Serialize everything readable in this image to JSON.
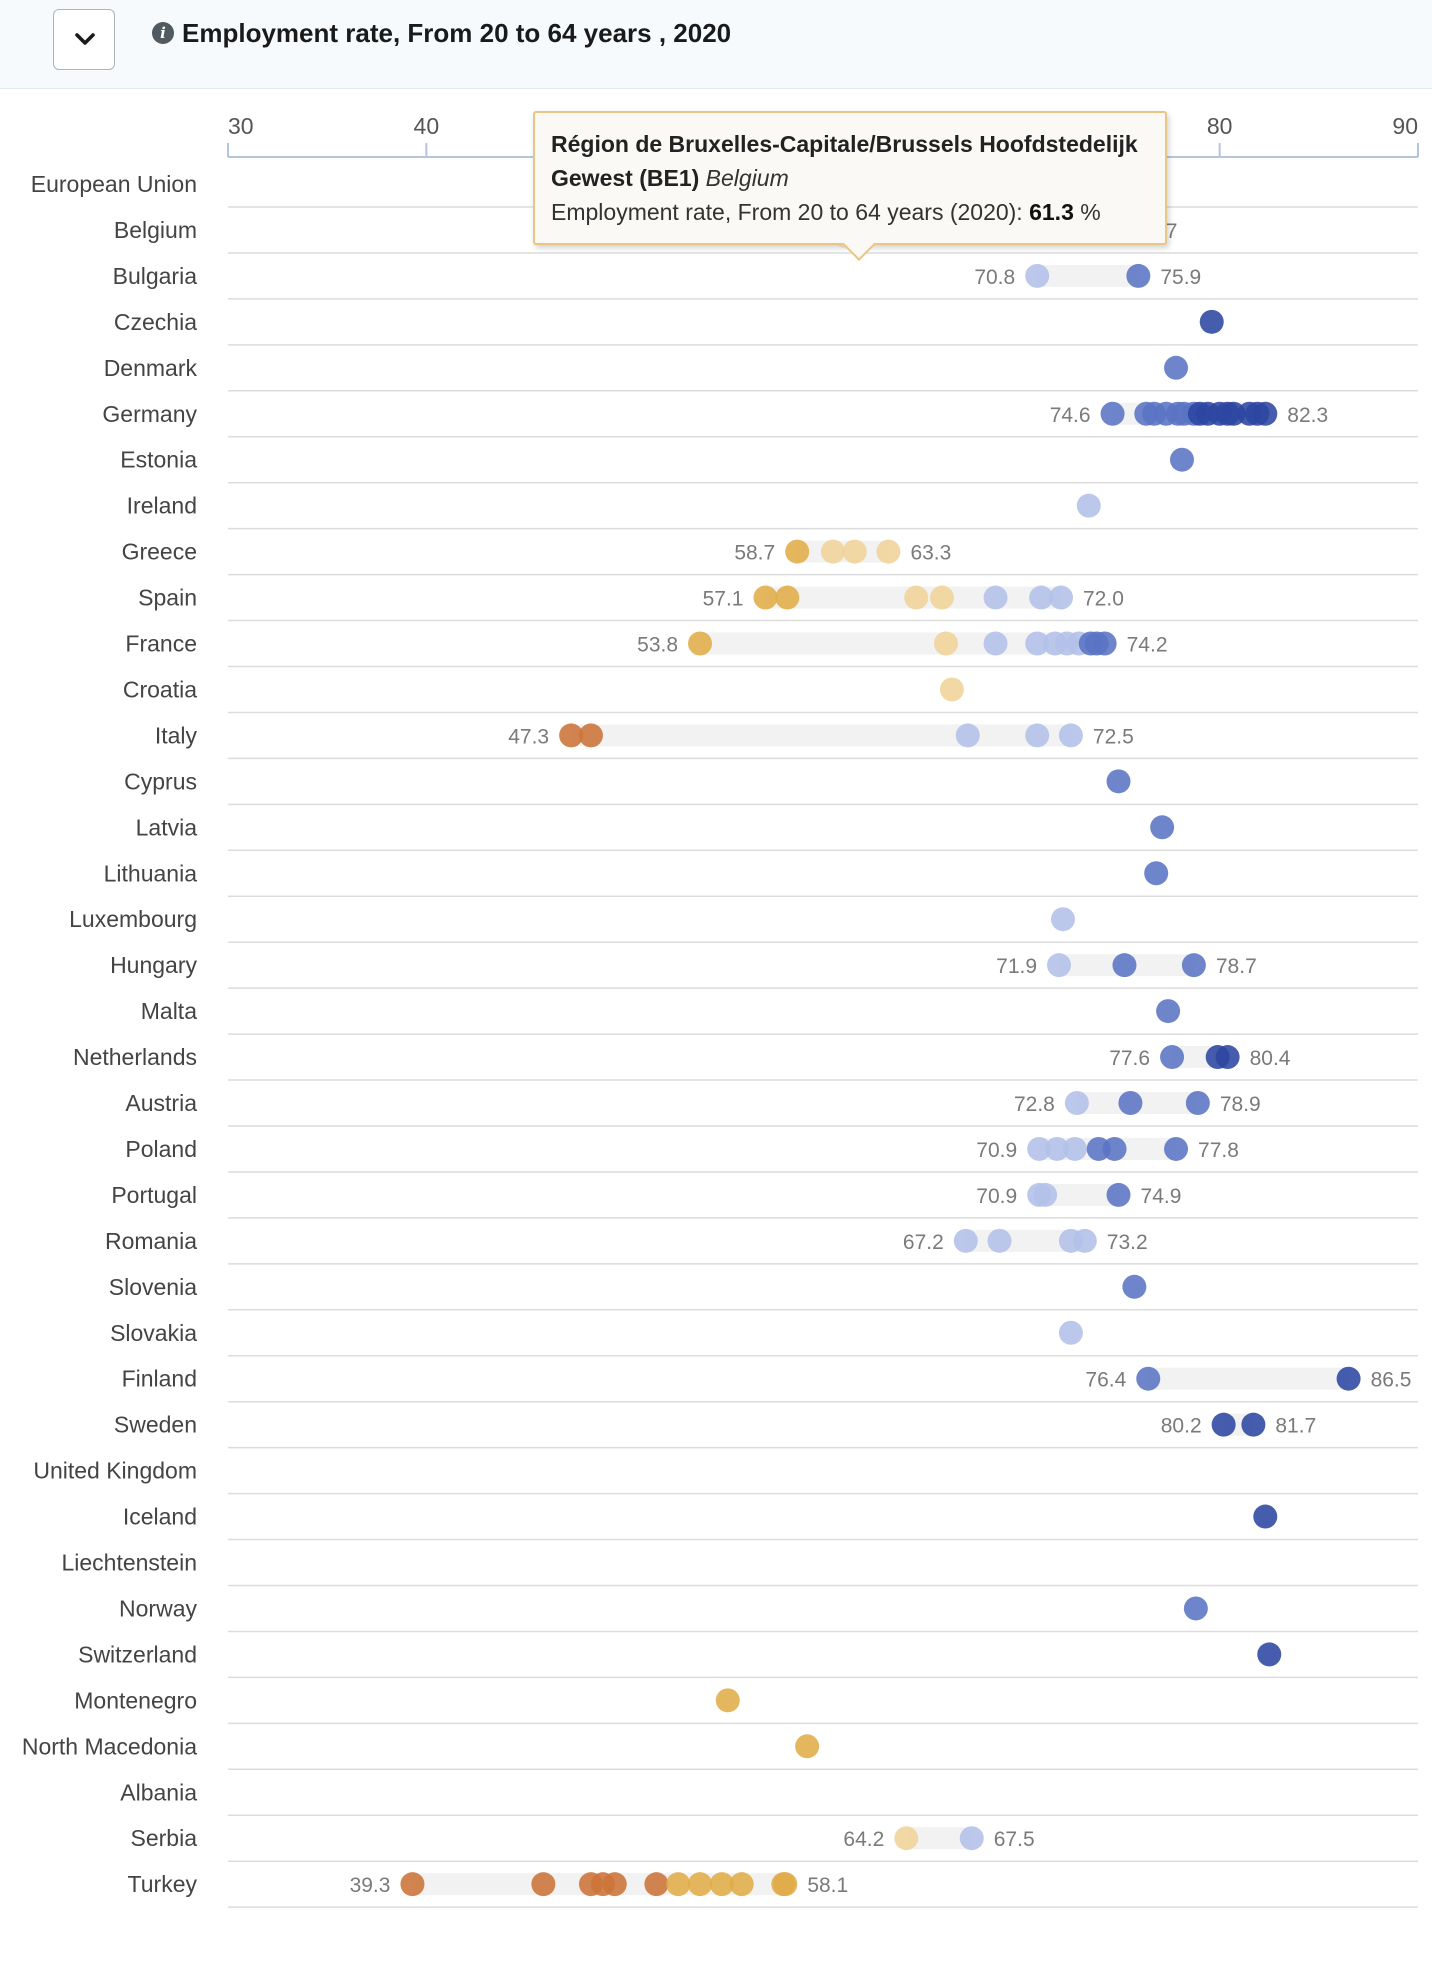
{
  "header": {
    "title": "Employment rate, From 20 to 64 years , 2020",
    "toggle_icon": "chevron-down-icon",
    "info_icon": "info-icon"
  },
  "tooltip": {
    "region": "Région de Bruxelles-Capitale/Brussels Hoofdstedelijk Gewest (BE1)",
    "country": "Belgium",
    "label": "Employment rate, From 20 to 64 years (2020):",
    "value": "61.3",
    "unit": "%"
  },
  "colors": {
    "high_dark": "#2c45a0",
    "high_mid": "#5a74c4",
    "high_light": "#b3c0e8",
    "low_light": "#efd399",
    "low_mid": "#e0ac48",
    "low_dark": "#cc7338",
    "range_bar": "#f2f2f2",
    "grid": "#dcdcdc",
    "axis": "#b6c5dc"
  },
  "chart_data": {
    "type": "scatter",
    "title": "Employment rate, From 20 to 64 years , 2020",
    "xlim": [
      30,
      90
    ],
    "x_ticks": [
      30,
      40,
      50,
      60,
      70,
      80,
      90
    ],
    "grid": true,
    "rows": [
      {
        "country": "European Union",
        "min_label": "",
        "max_label": "",
        "values": []
      },
      {
        "country": "Belgium",
        "min_label": "61.3",
        "max_label": "74.7",
        "values": [
          61.3,
          64.6,
          74.7
        ],
        "highlight": 61.3
      },
      {
        "country": "Bulgaria",
        "min_label": "70.8",
        "max_label": "75.9",
        "values": [
          70.8,
          75.9
        ]
      },
      {
        "country": "Czechia",
        "min_label": "",
        "max_label": "",
        "values": [
          79.6
        ]
      },
      {
        "country": "Denmark",
        "min_label": "",
        "max_label": "",
        "values": [
          77.8
        ]
      },
      {
        "country": "Germany",
        "min_label": "74.6",
        "max_label": "82.3",
        "values": [
          74.6,
          76.3,
          76.7,
          77.3,
          77.9,
          78.2,
          78.7,
          79.0,
          79.4,
          80.0,
          80.4,
          80.7,
          81.5,
          81.9,
          82.3
        ]
      },
      {
        "country": "Estonia",
        "min_label": "",
        "max_label": "",
        "values": [
          78.1
        ]
      },
      {
        "country": "Ireland",
        "min_label": "",
        "max_label": "",
        "values": [
          73.4
        ]
      },
      {
        "country": "Greece",
        "min_label": "58.7",
        "max_label": "63.3",
        "values": [
          58.7,
          60.5,
          61.6,
          63.3
        ]
      },
      {
        "country": "Spain",
        "min_label": "57.1",
        "max_label": "72.0",
        "values": [
          57.1,
          58.2,
          64.7,
          66.0,
          68.7,
          71.0,
          72.0
        ]
      },
      {
        "country": "France",
        "min_label": "53.8",
        "max_label": "74.2",
        "values": [
          53.8,
          66.2,
          68.7,
          70.8,
          71.7,
          72.3,
          72.9,
          73.5,
          73.8,
          74.2
        ]
      },
      {
        "country": "Croatia",
        "min_label": "",
        "max_label": "",
        "values": [
          66.5
        ]
      },
      {
        "country": "Italy",
        "min_label": "47.3",
        "max_label": "72.5",
        "values": [
          47.3,
          48.3,
          67.3,
          70.8,
          72.5
        ]
      },
      {
        "country": "Cyprus",
        "min_label": "",
        "max_label": "",
        "values": [
          74.9
        ]
      },
      {
        "country": "Latvia",
        "min_label": "",
        "max_label": "",
        "values": [
          77.1
        ]
      },
      {
        "country": "Lithuania",
        "min_label": "",
        "max_label": "",
        "values": [
          76.8
        ]
      },
      {
        "country": "Luxembourg",
        "min_label": "",
        "max_label": "",
        "values": [
          72.1
        ]
      },
      {
        "country": "Hungary",
        "min_label": "71.9",
        "max_label": "78.7",
        "values": [
          71.9,
          75.2,
          78.7
        ]
      },
      {
        "country": "Malta",
        "min_label": "",
        "max_label": "",
        "values": [
          77.4
        ]
      },
      {
        "country": "Netherlands",
        "min_label": "77.6",
        "max_label": "80.4",
        "values": [
          77.6,
          79.9,
          80.4
        ]
      },
      {
        "country": "Austria",
        "min_label": "72.8",
        "max_label": "78.9",
        "values": [
          72.8,
          75.5,
          78.9
        ]
      },
      {
        "country": "Poland",
        "min_label": "70.9",
        "max_label": "77.8",
        "values": [
          70.9,
          71.8,
          72.7,
          73.9,
          74.7,
          77.8
        ]
      },
      {
        "country": "Portugal",
        "min_label": "70.9",
        "max_label": "74.9",
        "values": [
          70.9,
          71.2,
          74.9
        ]
      },
      {
        "country": "Romania",
        "min_label": "67.2",
        "max_label": "73.2",
        "values": [
          67.2,
          68.9,
          72.5,
          73.2
        ]
      },
      {
        "country": "Slovenia",
        "min_label": "",
        "max_label": "",
        "values": [
          75.7
        ]
      },
      {
        "country": "Slovakia",
        "min_label": "",
        "max_label": "",
        "values": [
          72.5
        ]
      },
      {
        "country": "Finland",
        "min_label": "76.4",
        "max_label": "86.5",
        "values": [
          76.4,
          86.5
        ]
      },
      {
        "country": "Sweden",
        "min_label": "80.2",
        "max_label": "81.7",
        "values": [
          80.2,
          81.7
        ]
      },
      {
        "country": "United Kingdom",
        "min_label": "",
        "max_label": "",
        "values": []
      },
      {
        "country": "Iceland",
        "min_label": "",
        "max_label": "",
        "values": [
          82.3
        ]
      },
      {
        "country": "Liechtenstein",
        "min_label": "",
        "max_label": "",
        "values": []
      },
      {
        "country": "Norway",
        "min_label": "",
        "max_label": "",
        "values": [
          78.8
        ]
      },
      {
        "country": "Switzerland",
        "min_label": "",
        "max_label": "",
        "values": [
          82.5
        ]
      },
      {
        "country": "Montenegro",
        "min_label": "",
        "max_label": "",
        "values": [
          55.2
        ]
      },
      {
        "country": "North Macedonia",
        "min_label": "",
        "max_label": "",
        "values": [
          59.2
        ]
      },
      {
        "country": "Albania",
        "min_label": "",
        "max_label": "",
        "values": []
      },
      {
        "country": "Serbia",
        "min_label": "64.2",
        "max_label": "67.5",
        "values": [
          64.2,
          67.5
        ]
      },
      {
        "country": "Turkey",
        "min_label": "39.3",
        "max_label": "58.1",
        "values": [
          39.3,
          45.9,
          48.3,
          48.9,
          49.5,
          51.6,
          52.7,
          53.8,
          54.9,
          55.9,
          58.0,
          58.1
        ]
      }
    ]
  }
}
